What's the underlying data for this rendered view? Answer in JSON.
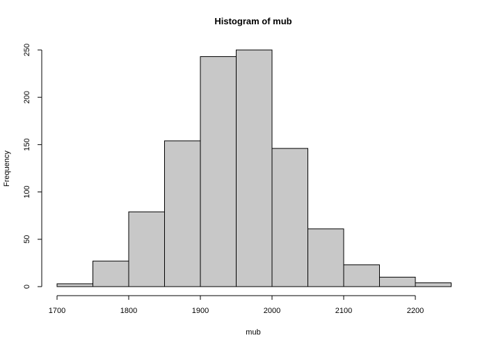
{
  "chart_data": {
    "type": "histogram",
    "title": "Histogram of mub",
    "xlabel": "mub",
    "ylabel": "Frequency",
    "xlim": [
      1700,
      2250
    ],
    "ylim": [
      0,
      250
    ],
    "x_ticks": [
      1700,
      1800,
      1900,
      2000,
      2100,
      2200
    ],
    "y_ticks": [
      0,
      50,
      100,
      150,
      200,
      250
    ],
    "bins": [
      {
        "start": 1700,
        "end": 1750,
        "count": 3
      },
      {
        "start": 1750,
        "end": 1800,
        "count": 27
      },
      {
        "start": 1800,
        "end": 1850,
        "count": 79
      },
      {
        "start": 1850,
        "end": 1900,
        "count": 154
      },
      {
        "start": 1900,
        "end": 1950,
        "count": 243
      },
      {
        "start": 1950,
        "end": 2000,
        "count": 250
      },
      {
        "start": 2000,
        "end": 2050,
        "count": 146
      },
      {
        "start": 2050,
        "end": 2100,
        "count": 61
      },
      {
        "start": 2100,
        "end": 2150,
        "count": 23
      },
      {
        "start": 2150,
        "end": 2200,
        "count": 10
      },
      {
        "start": 2200,
        "end": 2250,
        "count": 4
      }
    ],
    "rug_range": [
      1720,
      2222
    ],
    "grid": false,
    "bar_color": "#c8c8c8",
    "edge_color": "#000000"
  }
}
